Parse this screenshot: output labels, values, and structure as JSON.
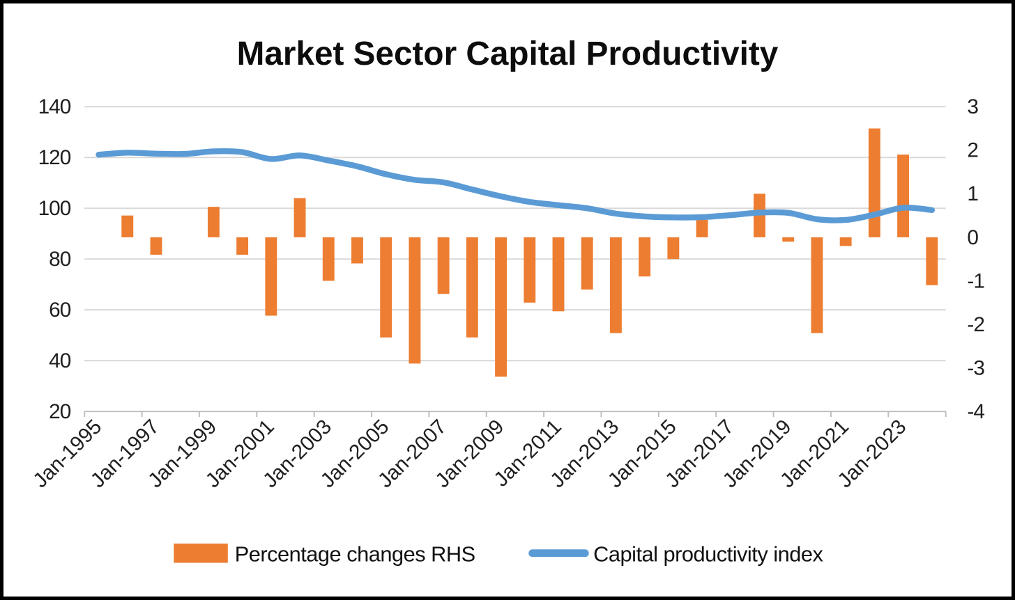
{
  "title": "Market Sector Capital Productivity",
  "legend": {
    "bar_label": "Percentage changes RHS",
    "line_label": "Capital productivity index"
  },
  "colors": {
    "bar": "#ED7D31",
    "line": "#5B9BD5",
    "gridline": "#D9D9D9",
    "axis": "#BFBFBF",
    "tick_text": "#1f1f1f",
    "title_text": "#0d0d0d",
    "background": "#FFFFFF",
    "frame": "#000000"
  },
  "chart_data": {
    "type": "bar+line combo",
    "categories": [
      1995,
      1996,
      1997,
      1998,
      1999,
      2000,
      2001,
      2002,
      2003,
      2004,
      2005,
      2006,
      2007,
      2008,
      2009,
      2010,
      2011,
      2012,
      2013,
      2014,
      2015,
      2016,
      2017,
      2018,
      2019,
      2020,
      2021,
      2022,
      2023,
      2024
    ],
    "x_tick_labels": [
      "Jan-1995",
      "Jan-1997",
      "Jan-1999",
      "Jan-2001",
      "Jan-2003",
      "Jan-2005",
      "Jan-2007",
      "Jan-2009",
      "Jan-2011",
      "Jan-2013",
      "Jan-2015",
      "Jan-2017",
      "Jan-2019",
      "Jan-2021",
      "Jan-2023"
    ],
    "series": [
      {
        "name": "Percentage changes RHS",
        "type": "bar",
        "axis": "right",
        "values": [
          null,
          0.5,
          -0.4,
          0,
          0.7,
          -0.4,
          -1.8,
          0.9,
          -1.0,
          -0.6,
          -2.3,
          -2.9,
          -1.3,
          -2.3,
          -3.2,
          -1.5,
          -1.7,
          -1.2,
          -2.2,
          -0.9,
          -0.5,
          0.4,
          0,
          1.0,
          -0.1,
          -2.2,
          -0.2,
          2.5,
          1.9,
          -1.1
        ]
      },
      {
        "name": "Capital productivity index",
        "type": "line",
        "axis": "left",
        "values": [
          121.1,
          121.9,
          121.5,
          121.4,
          122.4,
          122.1,
          119.4,
          120.8,
          118.8,
          116.5,
          113.4,
          111.2,
          110.2,
          107.4,
          104.7,
          102.5,
          101.2,
          100.0,
          97.9,
          96.8,
          96.4,
          96.5,
          97.3,
          98.3,
          98.2,
          95.7,
          95.4,
          97.5,
          100.2,
          99.3
        ]
      }
    ],
    "left_axis": {
      "min": 20,
      "max": 140,
      "ticks": [
        140,
        120,
        100,
        80,
        60,
        40,
        20
      ]
    },
    "right_axis": {
      "min": -4,
      "max": 3,
      "ticks": [
        3,
        2,
        1,
        0,
        -1,
        -2,
        -3,
        -4
      ]
    },
    "grid": true,
    "legend_position": "bottom"
  }
}
